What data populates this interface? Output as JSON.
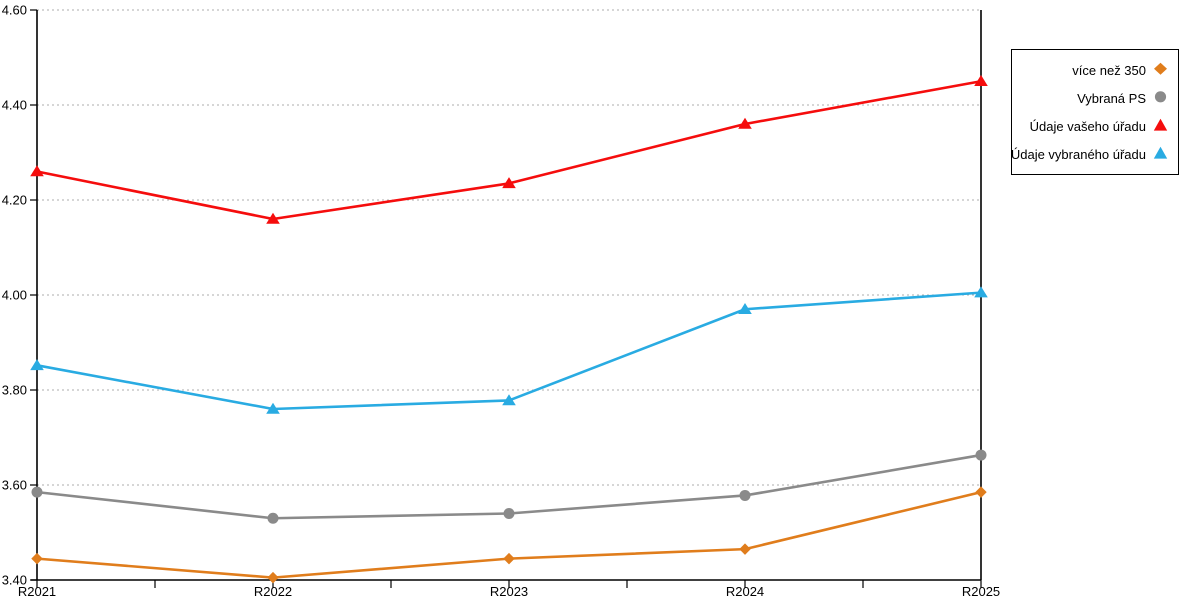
{
  "chart_data": {
    "type": "line",
    "title": "",
    "xlabel": "",
    "ylabel": "",
    "categories": [
      "R2021",
      "R2022",
      "R2023",
      "R2024",
      "R2025"
    ],
    "series": [
      {
        "name": "více než 350",
        "marker": "diamond",
        "color": "#E07D1C",
        "values": [
          3.445,
          3.405,
          3.445,
          3.465,
          3.585
        ]
      },
      {
        "name": "Vybraná PS",
        "marker": "circle",
        "color": "#8A8A8A",
        "values": [
          3.585,
          3.53,
          3.54,
          3.578,
          3.663
        ]
      },
      {
        "name": "Údaje vašeho úřadu",
        "marker": "triangle",
        "color": "#F50D0D",
        "values": [
          4.26,
          4.16,
          4.235,
          4.36,
          4.45
        ]
      },
      {
        "name": "Údaje vybraného úřadu",
        "marker": "triangle",
        "color": "#29ABE2",
        "values": [
          3.852,
          3.76,
          3.778,
          3.97,
          4.005
        ]
      }
    ],
    "ylim": [
      3.4,
      4.6
    ],
    "ytick_step": 0.2,
    "ytick_labels": [
      "3.40",
      "3.60",
      "3.80",
      "4.00",
      "4.20",
      "4.40",
      "4.60"
    ],
    "grid": "horizontal-dotted",
    "gridline_color": "#ADADAD",
    "axis_color": "#000000",
    "legend_position": "top-right",
    "legend_border_color": "#000000",
    "background_color": "#FFFFFF"
  }
}
